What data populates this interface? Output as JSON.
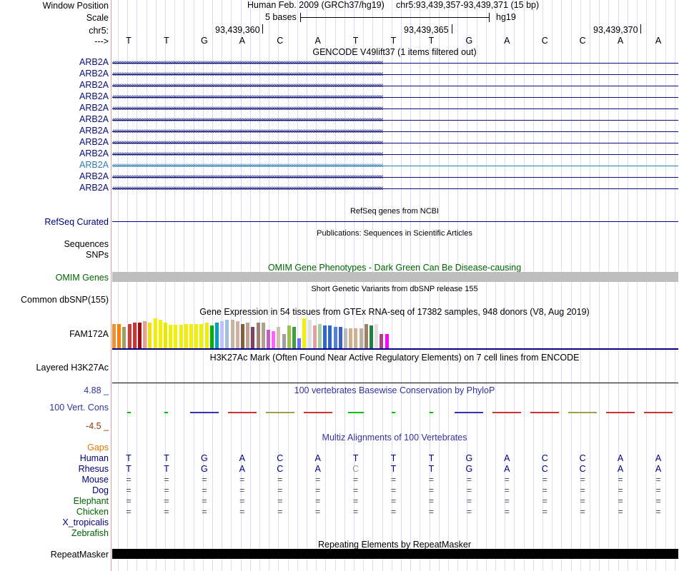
{
  "header": {
    "window_position_label": "Window Position",
    "assembly_title": "Human Feb. 2009 (GRCh37/hg19)",
    "position": "chr5:93,439,357-93,439,371 (15 bp)",
    "scale_label": "Scale",
    "scale_value": "5 bases",
    "db": "hg19",
    "chrom_label": "chr5:",
    "arrow_label": "--->",
    "coords": [
      "93,439,360",
      "93,439,365",
      "93,439,370"
    ]
  },
  "bases": [
    "T",
    "T",
    "G",
    "A",
    "C",
    "A",
    "T",
    "T",
    "T",
    "G",
    "A",
    "C",
    "C",
    "A",
    "A"
  ],
  "gencode": {
    "title": "GENCODE V49lift37 (1 items filtered out)",
    "rows": [
      "ARB2A",
      "ARB2A",
      "ARB2A",
      "ARB2A",
      "ARB2A",
      "ARB2A",
      "ARB2A",
      "ARB2A",
      "ARB2A",
      "ARB2A",
      "ARB2A",
      "ARB2A"
    ],
    "highlight_index": 9
  },
  "refseq": {
    "title": "RefSeq genes from NCBI",
    "label": "RefSeq Curated"
  },
  "publications": {
    "title": "Publications: Sequences in Scientific Articles",
    "label1": "Sequences",
    "label2": "SNPs"
  },
  "omim": {
    "title": "OMIM Gene Phenotypes - Dark Green Can Be Disease-causing",
    "label": "OMIM Genes"
  },
  "dbsnp": {
    "title": "Short Genetic Variants from dbSNP release 155",
    "label": "Common dbSNP(155)"
  },
  "gtex": {
    "title": "Gene Expression in 54 tissues from GTEx RNA-seq of 17382 samples, 948 donors (V8, Aug 2019)",
    "label": "FAM172A"
  },
  "h3k27ac": {
    "title": "H3K27Ac Mark (Often Found Near Active Regulatory Elements) on 7 cell lines from ENCODE",
    "label": "Layered H3K27Ac"
  },
  "conservation": {
    "title": "100 vertebrates Basewise Conservation by PhyloP",
    "label": "100 Vert. Cons",
    "max": "4.88 _",
    "min": "-4.5 _"
  },
  "multiz": {
    "title": "Multiz Alignments of 100 Vertebrates",
    "gaps_label": "Gaps",
    "species": [
      {
        "name": "Human",
        "bases": [
          "T",
          "T",
          "G",
          "A",
          "C",
          "A",
          "T",
          "T",
          "T",
          "G",
          "A",
          "C",
          "C",
          "A",
          "A"
        ]
      },
      {
        "name": "Rhesus",
        "bases": [
          "T",
          "T",
          "G",
          "A",
          "C",
          "A",
          "C",
          "T",
          "T",
          "G",
          "A",
          "C",
          "C",
          "A",
          "A"
        ]
      },
      {
        "name": "Mouse",
        "bases": [
          "=",
          "=",
          "=",
          "=",
          "=",
          "=",
          "=",
          "=",
          "=",
          "=",
          "=",
          "=",
          "=",
          "=",
          "="
        ]
      },
      {
        "name": "Dog",
        "bases": [
          "=",
          "=",
          "=",
          "=",
          "=",
          "=",
          "=",
          "=",
          "=",
          "=",
          "=",
          "=",
          "=",
          "=",
          "="
        ]
      },
      {
        "name": "Elephant",
        "bases": [
          "=",
          "=",
          "=",
          "=",
          "=",
          "=",
          "=",
          "=",
          "=",
          "=",
          "=",
          "=",
          "=",
          "=",
          "="
        ]
      },
      {
        "name": "Chicken",
        "bases": [
          "=",
          "=",
          "=",
          "=",
          "=",
          "=",
          "=",
          "=",
          "=",
          "=",
          "=",
          "=",
          "=",
          "=",
          "="
        ]
      },
      {
        "name": "X_tropicalis",
        "bases": []
      },
      {
        "name": "Zebrafish",
        "bases": []
      }
    ]
  },
  "repeatmasker": {
    "title": "Repeating Elements by RepeatMasker",
    "label": "RepeatMasker"
  },
  "colors": {
    "navy": "#000080",
    "green": "#006400",
    "gaps": "#e07800"
  }
}
